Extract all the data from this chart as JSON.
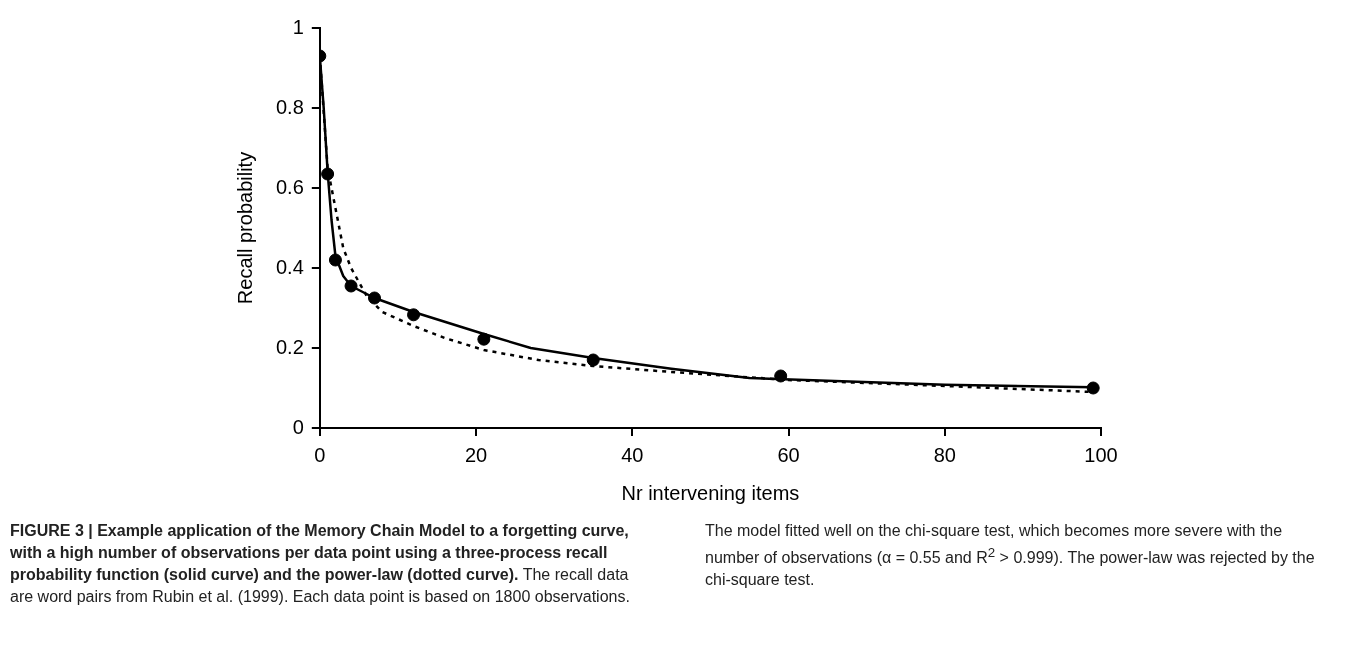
{
  "chart_data": {
    "type": "line",
    "title": "FIGURE 3 | Example application of the Memory Chain Model to a forgetting curve, with a high number of observations per data point using a three-process recall probability function (solid curve) and the power-law (dotted curve).",
    "xlabel": "Nr intervening items",
    "ylabel": "Recall probability",
    "annotations": [
      "The recall data are word pairs from Rubin et al. (1999). Each data point is based on 1800 observations. The model fitted well on the chi-square test, which becomes more severe with the number of observations (α = 0.55 and R$^{2}$ > 0.999). The power-law was rejected by the chi-square test."
    ],
    "xlim": [
      0,
      100
    ],
    "xticks": [
      0,
      20,
      40,
      60,
      80,
      100
    ],
    "ylim": [
      0,
      1
    ],
    "yticks": [
      0,
      0.2,
      0.4,
      0.6,
      0.8,
      1
    ],
    "grid": false,
    "legend": false,
    "series": [
      {
        "type": "line",
        "color": "#000000",
        "line_style": "dotted",
        "marker": "none",
        "x": [
          0,
          1,
          2,
          3,
          4,
          6,
          8,
          12,
          16,
          21,
          28,
          35,
          45,
          60,
          80,
          99
        ],
        "values": [
          0.93,
          0.65,
          0.55,
          0.45,
          0.4,
          0.33,
          0.29,
          0.255,
          0.225,
          0.195,
          0.17,
          0.155,
          0.14,
          0.12,
          0.105,
          0.09
        ]
      },
      {
        "type": "line",
        "color": "#000000",
        "line_style": "solid",
        "marker": "none",
        "x": [
          0,
          0.5,
          1,
          1.5,
          2,
          3,
          4,
          7,
          12,
          21,
          27,
          35,
          45,
          55,
          65,
          80,
          99
        ],
        "values": [
          0.93,
          0.8,
          0.64,
          0.52,
          0.43,
          0.38,
          0.355,
          0.325,
          0.29,
          0.235,
          0.2,
          0.175,
          0.148,
          0.125,
          0.118,
          0.108,
          0.102
        ]
      },
      {
        "type": "scatter",
        "color": "#000000",
        "marker": "circle",
        "x": [
          0,
          1,
          2,
          4,
          7,
          12,
          21,
          35,
          59,
          99
        ],
        "values": [
          0.93,
          0.635,
          0.42,
          0.355,
          0.325,
          0.283,
          0.222,
          0.17,
          0.13,
          0.1
        ]
      }
    ]
  }
}
